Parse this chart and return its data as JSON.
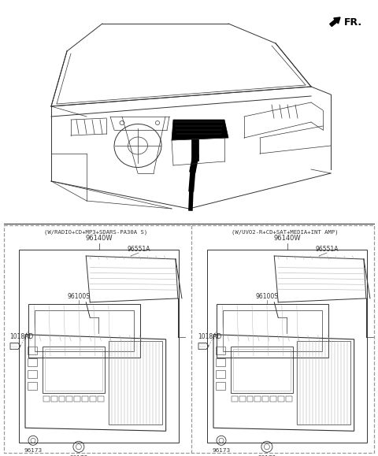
{
  "bg_color": "#ffffff",
  "line_color": "#333333",
  "gray_color": "#aaaaaa",
  "dark_color": "#555555",
  "dashed_color": "#999999",
  "fr_label": "FR.",
  "panel1_label": "(W/RADIO+CD+MP3+SDARS-PA30A S)",
  "panel2_label": "(W/UVO2-R+CD+SAT+MEDIA+INT AMP)",
  "fig_width": 4.8,
  "fig_height": 5.79,
  "dpi": 100
}
